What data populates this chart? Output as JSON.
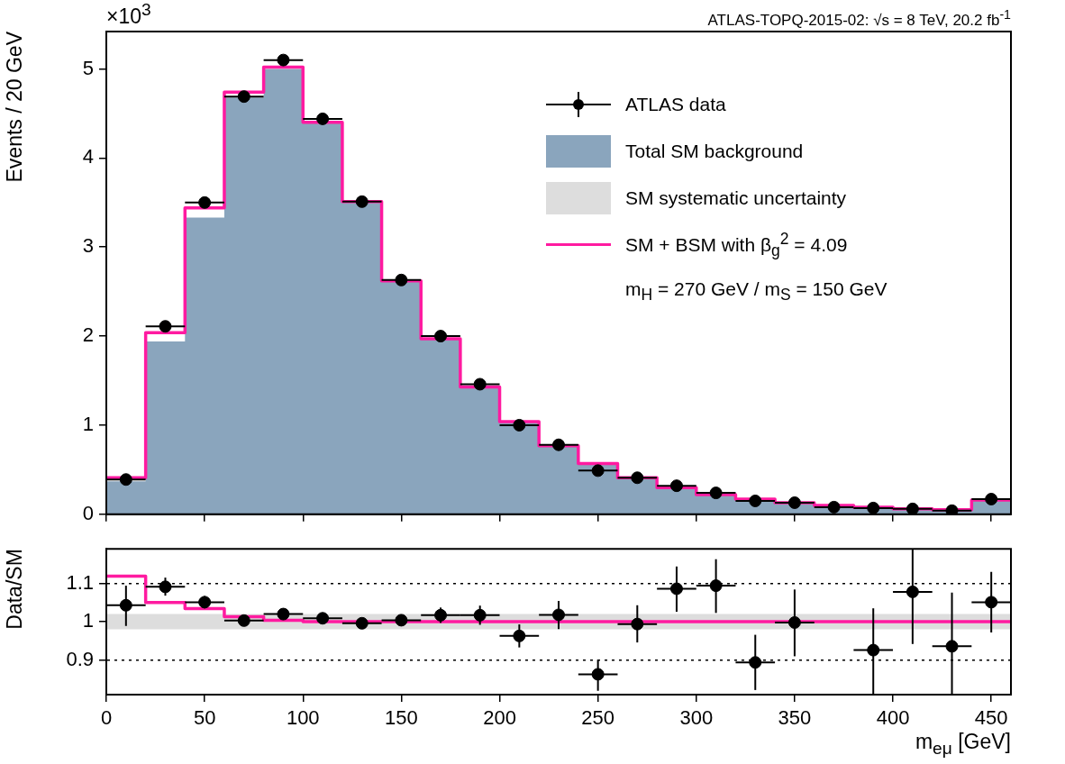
{
  "chart_data": [
    {
      "type": "histogram",
      "title": "ATLAS-TOPQ-2015-02: √s = 8 TeV, 20.2 fb$^{-1}$",
      "ylabel": "Events / 20 GeV",
      "annotations": [
        "×10$^{3}$",
        "m$_{H}$ = 270 GeV / m$_{S}$ = 150 GeV"
      ],
      "bins": [
        0,
        20,
        40,
        60,
        80,
        100,
        120,
        140,
        160,
        180,
        200,
        220,
        240,
        260,
        280,
        300,
        320,
        340,
        360,
        380,
        400,
        420,
        440,
        460
      ],
      "series": [
        {
          "name": "Total SM background",
          "color": "#8aa5bd",
          "values": [
            0.37,
            1.94,
            3.33,
            4.68,
            5.0,
            4.4,
            3.51,
            2.62,
            1.97,
            1.43,
            1.04,
            0.77,
            0.57,
            0.41,
            0.3,
            0.22,
            0.17,
            0.13,
            0.1,
            0.08,
            0.06,
            0.05,
            0.16
          ]
        },
        {
          "name": "SM + BSM with β$_{g}$$^{2}$ = 4.09",
          "type": "step",
          "color": "#ff1aa0",
          "x": [
            0,
            20,
            40,
            60,
            80,
            100,
            120,
            140,
            160,
            180,
            200,
            220,
            240,
            260,
            280,
            300,
            320,
            340,
            360,
            380,
            400,
            420,
            440,
            460
          ],
          "values": [
            0.41,
            2.04,
            3.44,
            4.74,
            5.02,
            4.4,
            3.51,
            2.62,
            1.97,
            1.43,
            1.04,
            0.77,
            0.57,
            0.41,
            0.3,
            0.22,
            0.17,
            0.13,
            0.1,
            0.08,
            0.06,
            0.05,
            0.16,
            0.16
          ]
        },
        {
          "name": "ATLAS data",
          "type": "scatter",
          "marker": "circle",
          "color": "#000000",
          "x": [
            10,
            30,
            50,
            70,
            90,
            110,
            130,
            150,
            170,
            190,
            210,
            230,
            250,
            270,
            290,
            310,
            330,
            350,
            370,
            390,
            410,
            430,
            450
          ],
          "values": [
            0.39,
            2.11,
            3.5,
            4.69,
            5.1,
            4.44,
            3.51,
            2.63,
            2.0,
            1.46,
            1.0,
            0.78,
            0.49,
            0.41,
            0.32,
            0.24,
            0.15,
            0.13,
            0.08,
            0.07,
            0.06,
            0.04,
            0.17
          ],
          "xerrors": [
            10,
            10,
            10,
            10,
            10,
            10,
            10,
            10,
            10,
            10,
            10,
            10,
            10,
            10,
            10,
            10,
            10,
            10,
            10,
            10,
            10,
            10,
            10
          ]
        }
      ],
      "xlim": [
        0,
        460
      ],
      "xticks": [
        0,
        50,
        100,
        150,
        200,
        250,
        300,
        350,
        400,
        450
      ],
      "ylim": [
        0,
        5.42
      ],
      "yticks": [
        0,
        1,
        2,
        3,
        4,
        5
      ],
      "tick_labels": "y",
      "legend": "top right"
    },
    {
      "type": "scatter",
      "xlabel": "m$_{eμ}$ [GeV]",
      "ylabel": "Data/SM",
      "bands": [
        {
          "axis": "y",
          "from": 0.98,
          "to": 1.02,
          "color": "#dddddd",
          "label": "SM systematic uncertainty"
        }
      ],
      "series": [
        {
          "type": "step",
          "color": "#ff1aa0",
          "x": [
            0,
            20,
            40,
            60,
            80,
            100,
            120,
            140,
            160,
            180,
            200,
            220,
            240,
            260,
            280,
            300,
            320,
            340,
            360,
            380,
            400,
            420,
            440,
            460
          ],
          "values": [
            1.119,
            1.05,
            1.034,
            1.013,
            1.004,
            1,
            1,
            1,
            1,
            1,
            1,
            1,
            1,
            1,
            1,
            1,
            1,
            1,
            1,
            1,
            1,
            1,
            1,
            1
          ]
        },
        {
          "marker": "circle",
          "color": "#000000",
          "x": [
            10,
            30,
            50,
            70,
            90,
            110,
            130,
            150,
            170,
            190,
            210,
            230,
            250,
            270,
            290,
            310,
            330,
            350,
            370,
            390,
            410,
            430,
            450
          ],
          "values": [
            1.043,
            1.091,
            1.051,
            1.003,
            1.02,
            1.009,
            0.996,
            1.004,
            1.017,
            1.017,
            0.963,
            1.018,
            0.863,
            0.994,
            1.086,
            1.094,
            0.894,
            0.998,
            null,
            0.926,
            1.078,
            0.936,
            1.051
          ],
          "errors": [
            [
              0.989,
              1.094
            ],
            [
              1.068,
              1.115
            ],
            [
              1.035,
              1.067
            ],
            [
              0.993,
              1.013
            ],
            [
              1.01,
              1.03
            ],
            [
              0.997,
              1.021
            ],
            [
              0.983,
              1.009
            ],
            [
              0.989,
              1.019
            ],
            [
              0.997,
              1.037
            ],
            [
              0.992,
              1.042
            ],
            [
              0.933,
              0.993
            ],
            [
              0.981,
              1.054
            ],
            [
              0.82,
              0.901
            ],
            [
              0.946,
              1.043
            ],
            [
              1.026,
              1.144
            ],
            [
              1.023,
              1.163
            ],
            [
              0.822,
              0.966
            ],
            [
              0.91,
              1.084
            ],
            null,
            [
              0.81,
              1.035
            ],
            [
              0.942,
              1.19
            ],
            [
              0.81,
              1.076
            ],
            [
              0.972,
              1.13
            ]
          ],
          "xerrors": [
            10,
            10,
            10,
            10,
            10,
            10,
            10,
            10,
            10,
            10,
            10,
            10,
            10,
            10,
            10,
            10,
            10,
            10,
            null,
            10,
            10,
            10,
            10
          ]
        }
      ],
      "xlim": [
        0,
        460
      ],
      "xticks": [
        0,
        50,
        100,
        150,
        200,
        250,
        300,
        350,
        400,
        450
      ],
      "ylim": [
        0.81,
        1.19
      ],
      "yticks": [
        0.9,
        1,
        1.1
      ],
      "grid": "y"
    }
  ]
}
